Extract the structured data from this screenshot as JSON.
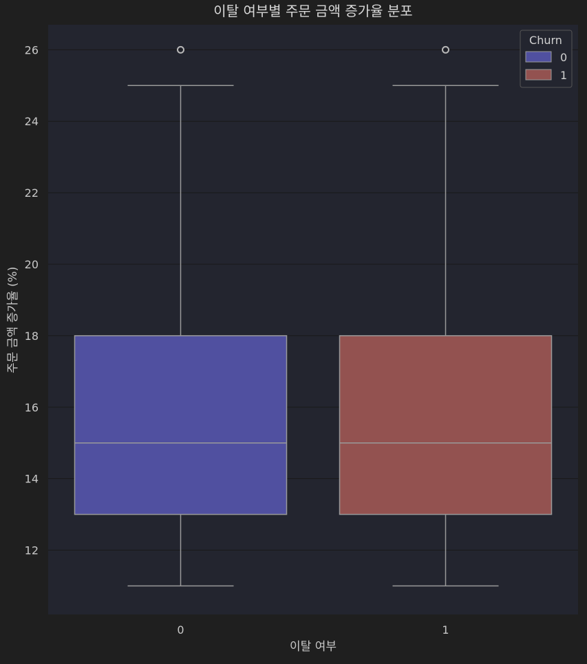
{
  "chart_data": {
    "type": "box",
    "title": "이탈 여부별 주문 금액 증가율 분포",
    "xlabel": "이탈 여부",
    "ylabel": "주문 금액 증가율 (%)",
    "categories": [
      "0",
      "1"
    ],
    "ylim": [
      10.2,
      26.7
    ],
    "yticks": [
      12,
      14,
      16,
      18,
      20,
      22,
      24,
      26
    ],
    "grid": true,
    "legend": {
      "title": "Churn",
      "placement": "top-right",
      "entries": [
        "0",
        "1"
      ]
    },
    "series": [
      {
        "name": "0",
        "color": "#5050a0",
        "whisker_low": 11,
        "q1": 13,
        "median": 15,
        "q3": 18,
        "whisker_high": 25,
        "outliers": [
          26
        ]
      },
      {
        "name": "1",
        "color": "#935250",
        "whisker_low": 11,
        "q1": 13,
        "median": 15,
        "q3": 18,
        "whisker_high": 25,
        "outliers": [
          26
        ]
      }
    ]
  },
  "colors": {
    "background": "#1f1f1f",
    "plot_background": "#23252f",
    "grid": "#191919",
    "line": "#9a9a9a"
  }
}
